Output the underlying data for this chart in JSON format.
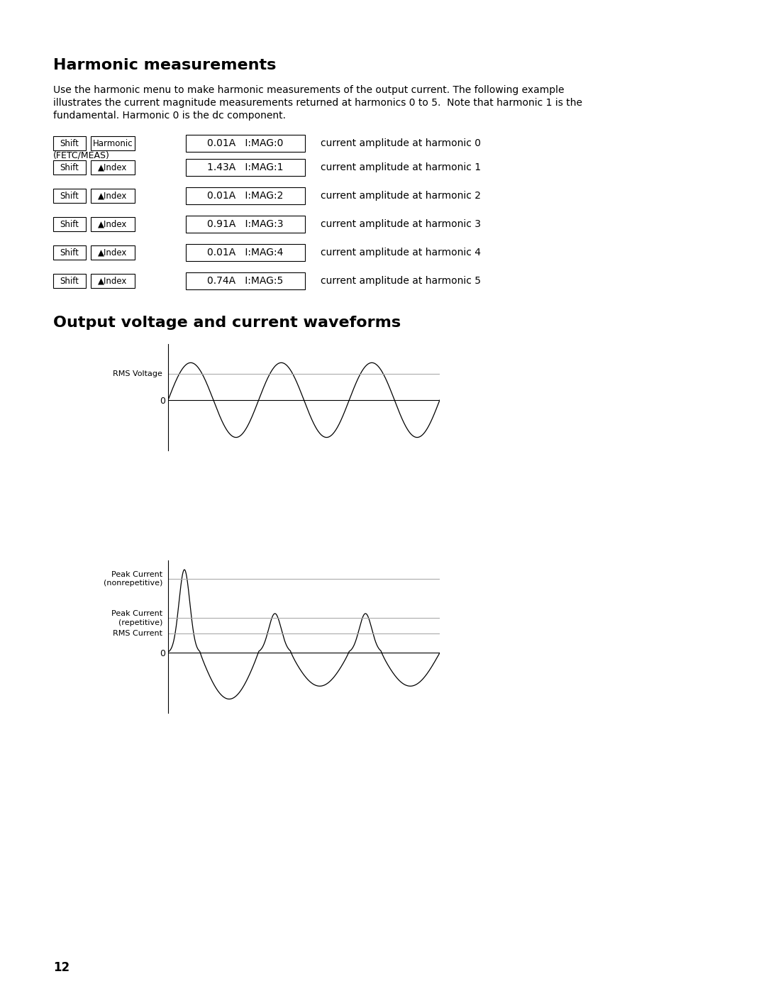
{
  "title_harmonic": "Harmonic measurements",
  "title_waveform": "Output voltage and current waveforms",
  "body_text_line1": "Use the harmonic menu to make harmonic measurements of the output current. The following example",
  "body_text_line2": "illustrates the current magnitude measurements returned at harmonics 0 to 5.  Note that harmonic 1 is the",
  "body_text_line3": "fundamental. Harmonic 0 is the dc component.",
  "page_number": "12",
  "harmonic_rows": [
    {
      "btn1": "Shift",
      "btn2": "Harmonic",
      "fetc_above": null,
      "display": "0.01A   I:MAG:0",
      "label": "current amplitude at harmonic 0"
    },
    {
      "btn1": "Shift",
      "btn2": "▲Index",
      "fetc_above": "(FETC/MEAS)",
      "display": "1.43A   I:MAG:1",
      "label": "current amplitude at harmonic 1"
    },
    {
      "btn1": "Shift",
      "btn2": "▲Index",
      "fetc_above": null,
      "display": "0.01A   I:MAG:2",
      "label": "current amplitude at harmonic 2"
    },
    {
      "btn1": "Shift",
      "btn2": "▲Index",
      "fetc_above": null,
      "display": "0.91A   I:MAG:3",
      "label": "current amplitude at harmonic 3"
    },
    {
      "btn1": "Shift",
      "btn2": "▲Index",
      "fetc_above": null,
      "display": "0.01A   I:MAG:4",
      "label": "current amplitude at harmonic 4"
    },
    {
      "btn1": "Shift",
      "btn2": "▲Index",
      "fetc_above": null,
      "display": "0.74A   I:MAG:5",
      "label": "current amplitude at harmonic 5"
    }
  ],
  "bg_color": "#ffffff",
  "text_color": "#000000"
}
